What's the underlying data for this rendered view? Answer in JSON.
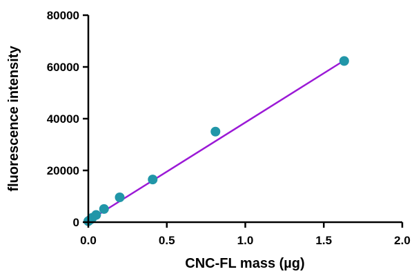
{
  "chart_data": {
    "type": "scatter",
    "title": "",
    "xlabel": "CNC-FL mass (µg)",
    "ylabel": "fluorescence intensity",
    "xlim": [
      0,
      2.0
    ],
    "ylim": [
      0,
      80000
    ],
    "x_ticks": [
      0.0,
      0.5,
      1.0,
      1.5,
      2.0
    ],
    "x_tick_labels": [
      "0.0",
      "0.5",
      "1.0",
      "1.5",
      "2.0"
    ],
    "y_ticks": [
      0,
      20000,
      40000,
      60000,
      80000
    ],
    "y_tick_labels": [
      "0",
      "20000",
      "40000",
      "60000",
      "80000"
    ],
    "grid": false,
    "legend": "none",
    "series": [
      {
        "name": "",
        "color": "#2196A8",
        "x": [
          0.0,
          0.013,
          0.025,
          0.05,
          0.1,
          0.2,
          0.41,
          0.81,
          1.63
        ],
        "y": [
          400,
          1000,
          1700,
          2800,
          5100,
          9600,
          16500,
          35000,
          62300
        ]
      }
    ],
    "fit_line": {
      "color": "#9B19D6",
      "x": [
        0.0,
        1.63
      ],
      "y": [
        500,
        62500
      ]
    }
  }
}
